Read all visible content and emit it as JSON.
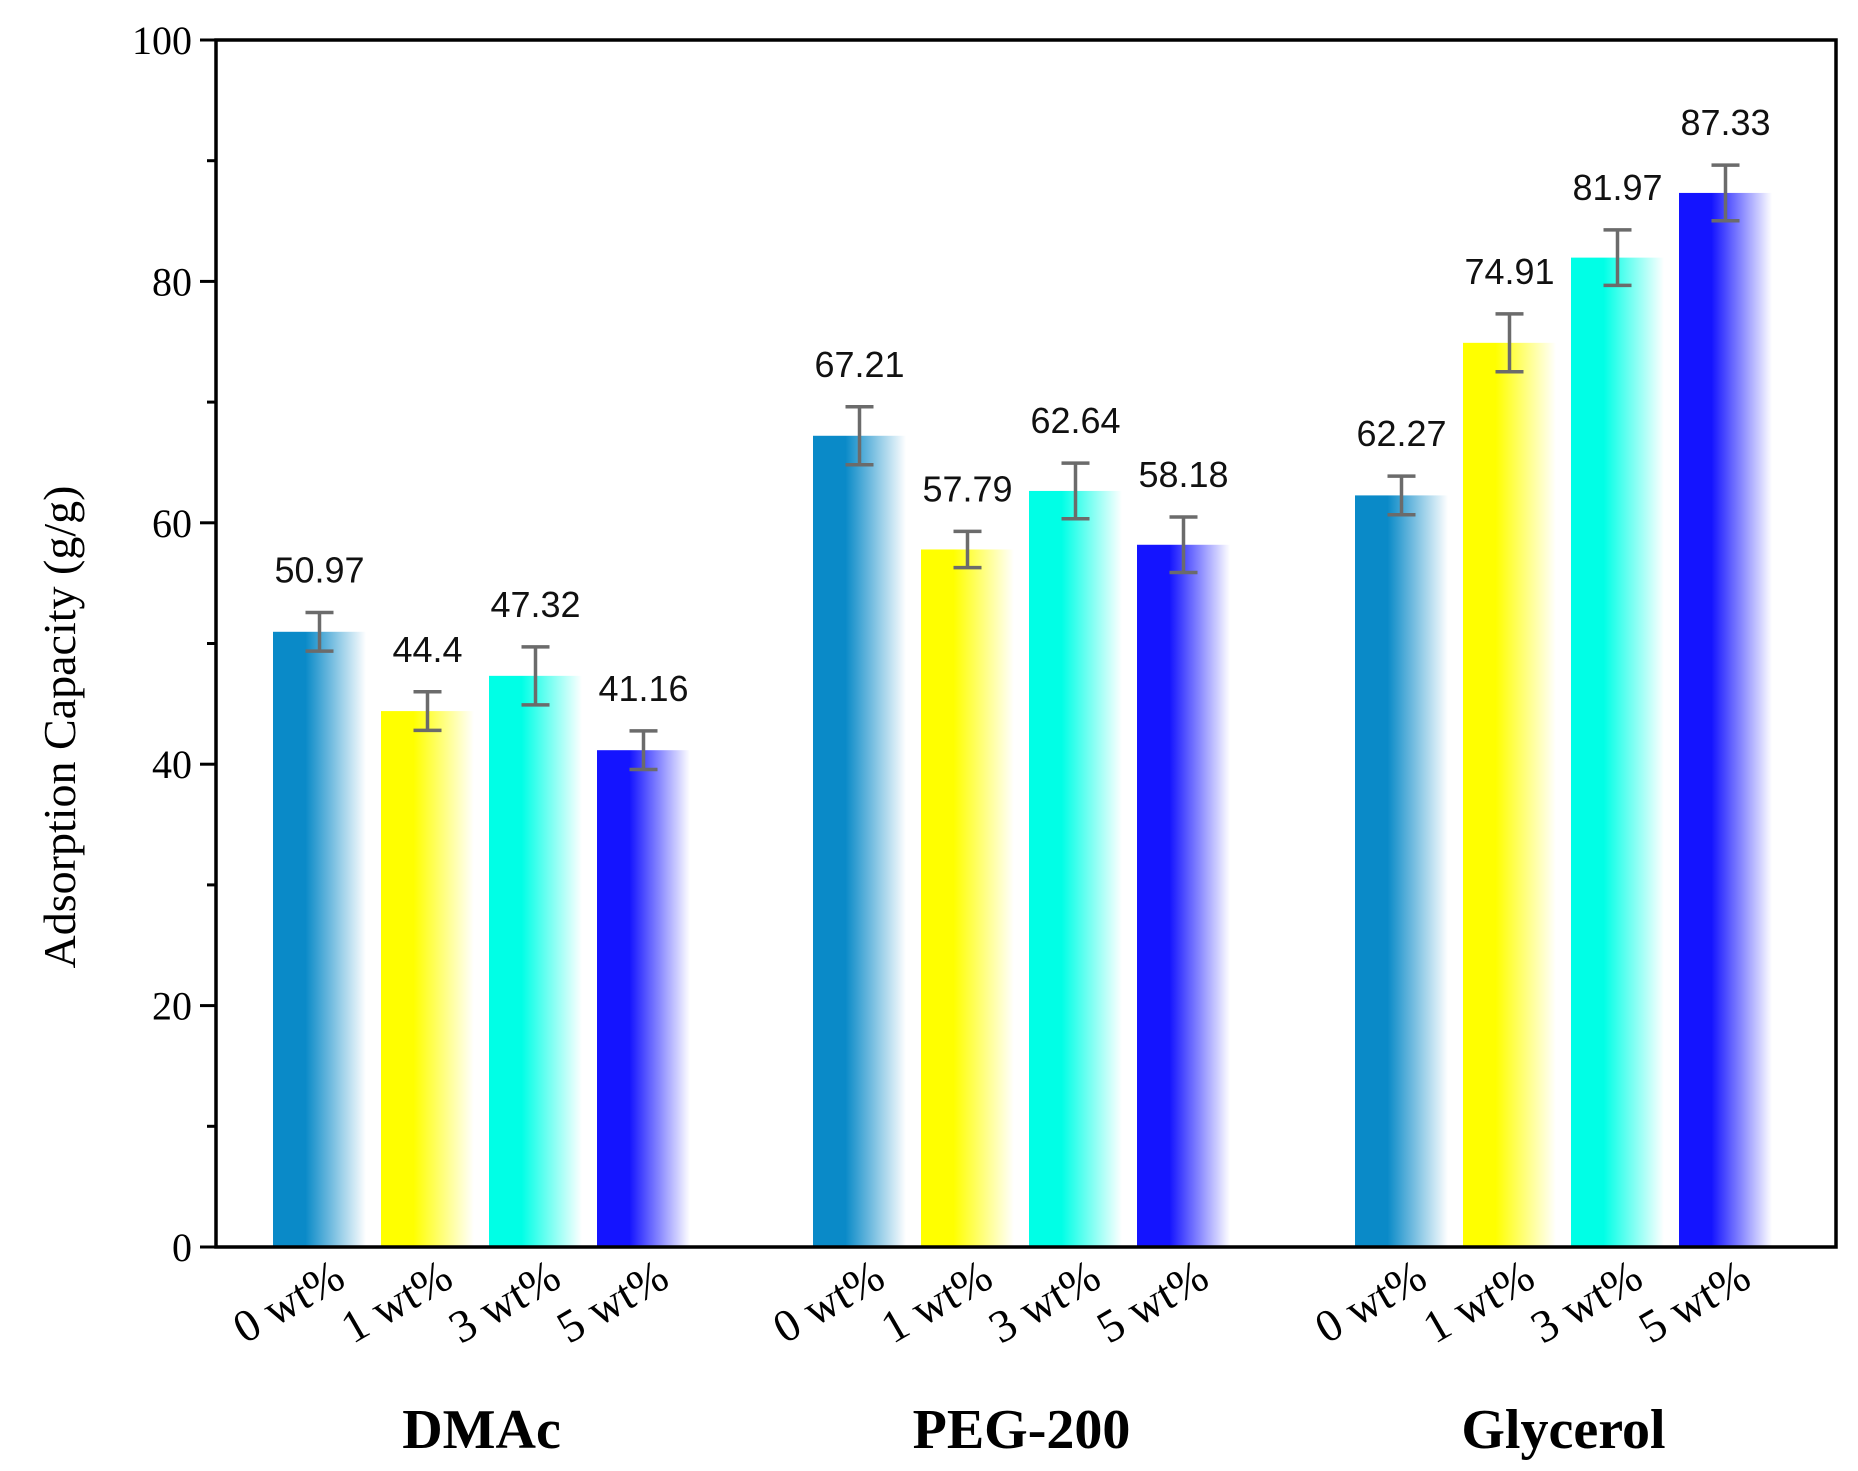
{
  "chart_data": {
    "type": "bar",
    "ylabel": "Adsorption  Capacity (g/g)",
    "ylim": [
      0,
      100
    ],
    "yticks": [
      0,
      20,
      40,
      60,
      80,
      100
    ],
    "grid": false,
    "legend": "none",
    "colors": [
      "#0a8ac8",
      "#ffff00",
      "#00ffe6",
      "#1414ff"
    ],
    "groups": [
      {
        "name": "DMAc",
        "bars": [
          {
            "label": "0 wt%",
            "value": 50.97,
            "value_label": "50.97",
            "err": 1.6
          },
          {
            "label": "1 wt%",
            "value": 44.4,
            "value_label": "44.4",
            "err": 1.6
          },
          {
            "label": "3 wt%",
            "value": 47.32,
            "value_label": "47.32",
            "err": 2.4
          },
          {
            "label": "5 wt%",
            "value": 41.16,
            "value_label": "41.16",
            "err": 1.6
          }
        ]
      },
      {
        "name": "PEG-200",
        "bars": [
          {
            "label": "0 wt%",
            "value": 67.21,
            "value_label": "67.21",
            "err": 2.4
          },
          {
            "label": "1 wt%",
            "value": 57.79,
            "value_label": "57.79",
            "err": 1.5
          },
          {
            "label": "3 wt%",
            "value": 62.64,
            "value_label": "62.64",
            "err": 2.3
          },
          {
            "label": "5 wt%",
            "value": 58.18,
            "value_label": "58.18",
            "err": 2.3
          }
        ]
      },
      {
        "name": "Glycerol",
        "bars": [
          {
            "label": "0 wt%",
            "value": 62.27,
            "value_label": "62.27",
            "err": 1.6
          },
          {
            "label": "1 wt%",
            "value": 74.91,
            "value_label": "74.91",
            "err": 2.4
          },
          {
            "label": "3 wt%",
            "value": 81.97,
            "value_label": "81.97",
            "err": 2.3
          },
          {
            "label": "5 wt%",
            "value": 87.33,
            "value_label": "87.33",
            "err": 2.3
          }
        ]
      }
    ]
  }
}
